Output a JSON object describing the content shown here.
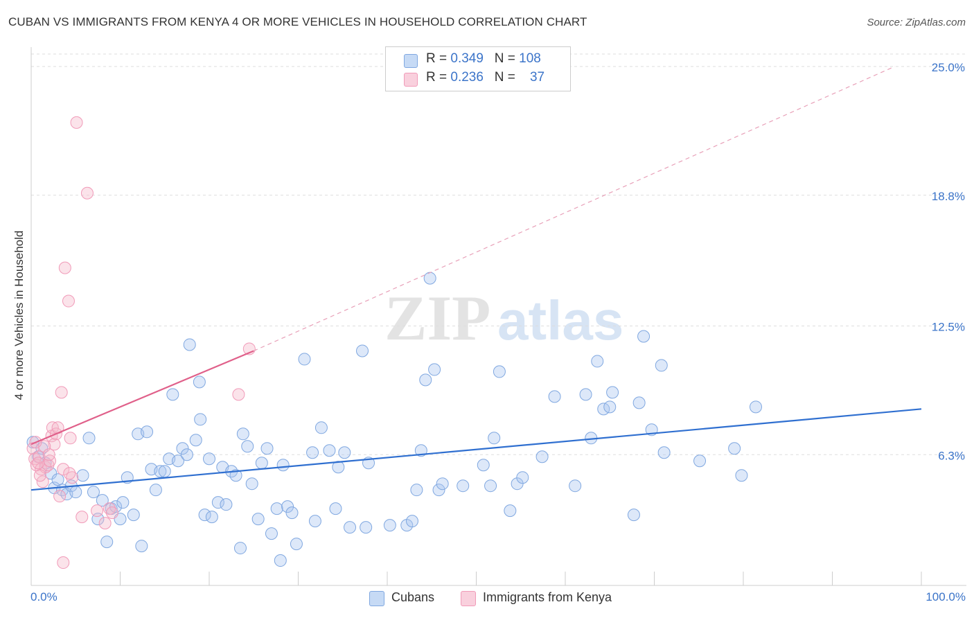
{
  "header": {
    "title": "CUBAN VS IMMIGRANTS FROM KENYA 4 OR MORE VEHICLES IN HOUSEHOLD CORRELATION CHART",
    "source": "Source: ZipAtlas.com"
  },
  "watermark": {
    "zip": "ZIP",
    "atlas": "atlas"
  },
  "legend": {
    "rows": [
      {
        "r_label": "R = ",
        "r_value": "0.349",
        "n_label": "N = ",
        "n_value": "108",
        "color": "#a9c6ef"
      },
      {
        "r_label": "R = ",
        "r_value": "0.236",
        "n_label": "N = ",
        "n_value": "37",
        "color": "#f5b8cb"
      }
    ]
  },
  "bottom_legend": [
    {
      "label": "Cubans",
      "color": "#a9c6ef"
    },
    {
      "label": "Immigrants from Kenya",
      "color": "#f5b8cb"
    }
  ],
  "chart_data": {
    "type": "scatter",
    "ylabel": "4 or more Vehicles in Household",
    "xlim": [
      0,
      100
    ],
    "ylim": [
      0,
      25
    ],
    "x_tick_labels": [
      "0.0%",
      "100.0%"
    ],
    "y_ticks": [
      6.3,
      12.5,
      18.8,
      25.0
    ],
    "y_tick_labels": [
      "6.3%",
      "12.5%",
      "18.8%",
      "25.0%"
    ],
    "grid": true,
    "legend_position": "top-center",
    "series": [
      {
        "name": "Cubans",
        "color": "#7fa7e0",
        "trend": {
          "x": [
            0,
            100
          ],
          "y": [
            4.6,
            8.5
          ],
          "color": "#2f6fd0",
          "style": "solid"
        },
        "points": [
          [
            0.2,
            6.9
          ],
          [
            0.8,
            6.2
          ],
          [
            1.2,
            6.6
          ],
          [
            1.6,
            5.9
          ],
          [
            2.2,
            5.4
          ],
          [
            2.6,
            4.7
          ],
          [
            3.0,
            5.1
          ],
          [
            3.5,
            4.6
          ],
          [
            4.0,
            4.4
          ],
          [
            4.5,
            4.8
          ],
          [
            5.0,
            4.5
          ],
          [
            5.8,
            5.3
          ],
          [
            6.5,
            7.1
          ],
          [
            7.0,
            4.5
          ],
          [
            7.5,
            3.2
          ],
          [
            8.0,
            4.1
          ],
          [
            8.5,
            2.1
          ],
          [
            9.0,
            3.7
          ],
          [
            9.5,
            3.8
          ],
          [
            10.0,
            3.2
          ],
          [
            10.3,
            4.0
          ],
          [
            10.8,
            5.2
          ],
          [
            11.5,
            3.4
          ],
          [
            12.0,
            7.3
          ],
          [
            12.4,
            1.9
          ],
          [
            13.0,
            7.4
          ],
          [
            13.5,
            5.6
          ],
          [
            14.0,
            4.6
          ],
          [
            14.5,
            5.5
          ],
          [
            15.0,
            5.5
          ],
          [
            15.5,
            6.1
          ],
          [
            15.9,
            9.2
          ],
          [
            16.5,
            6.0
          ],
          [
            17.0,
            6.6
          ],
          [
            17.5,
            6.3
          ],
          [
            17.8,
            11.6
          ],
          [
            18.5,
            7.0
          ],
          [
            19.0,
            8.0
          ],
          [
            19.5,
            3.4
          ],
          [
            20.0,
            6.1
          ],
          [
            20.3,
            3.3
          ],
          [
            21.0,
            4.0
          ],
          [
            21.5,
            5.7
          ],
          [
            21.9,
            3.9
          ],
          [
            22.5,
            5.5
          ],
          [
            23.0,
            5.3
          ],
          [
            23.5,
            1.8
          ],
          [
            23.8,
            7.3
          ],
          [
            24.3,
            6.7
          ],
          [
            24.8,
            4.9
          ],
          [
            25.5,
            3.2
          ],
          [
            25.9,
            5.9
          ],
          [
            26.5,
            6.6
          ],
          [
            27.0,
            2.5
          ],
          [
            27.6,
            3.7
          ],
          [
            28.0,
            1.2
          ],
          [
            28.3,
            5.8
          ],
          [
            28.8,
            3.8
          ],
          [
            29.3,
            3.5
          ],
          [
            29.8,
            2.0
          ],
          [
            30.7,
            10.9
          ],
          [
            31.6,
            6.4
          ],
          [
            31.9,
            3.1
          ],
          [
            32.6,
            7.6
          ],
          [
            33.5,
            6.5
          ],
          [
            34.2,
            3.7
          ],
          [
            34.5,
            5.7
          ],
          [
            35.2,
            6.4
          ],
          [
            35.8,
            2.8
          ],
          [
            37.2,
            11.3
          ],
          [
            37.6,
            2.8
          ],
          [
            37.9,
            5.9
          ],
          [
            40.3,
            2.9
          ],
          [
            42.2,
            2.9
          ],
          [
            42.8,
            3.1
          ],
          [
            43.3,
            4.6
          ],
          [
            43.8,
            6.5
          ],
          [
            44.3,
            9.9
          ],
          [
            44.8,
            14.8
          ],
          [
            45.3,
            10.4
          ],
          [
            45.8,
            4.6
          ],
          [
            46.2,
            4.9
          ],
          [
            48.5,
            4.8
          ],
          [
            50.8,
            5.8
          ],
          [
            51.6,
            4.8
          ],
          [
            52.0,
            7.1
          ],
          [
            52.6,
            10.3
          ],
          [
            53.8,
            3.6
          ],
          [
            54.6,
            4.9
          ],
          [
            55.2,
            5.2
          ],
          [
            57.4,
            6.2
          ],
          [
            58.8,
            9.1
          ],
          [
            61.1,
            4.8
          ],
          [
            62.3,
            9.2
          ],
          [
            62.9,
            7.1
          ],
          [
            63.6,
            10.8
          ],
          [
            64.3,
            8.5
          ],
          [
            65.0,
            8.6
          ],
          [
            65.3,
            9.3
          ],
          [
            67.7,
            3.4
          ],
          [
            68.3,
            8.8
          ],
          [
            68.8,
            12.0
          ],
          [
            69.7,
            7.5
          ],
          [
            70.8,
            10.6
          ],
          [
            71.1,
            6.4
          ],
          [
            75.1,
            6.0
          ],
          [
            79.0,
            6.6
          ],
          [
            79.8,
            5.3
          ],
          [
            81.4,
            8.6
          ],
          [
            18.9,
            9.8
          ]
        ]
      },
      {
        "name": "Immigrants from Kenya",
        "color": "#f19ab8",
        "trend": {
          "x": [
            0,
            25,
            97
          ],
          "y": [
            6.8,
            11.3,
            25.0
          ],
          "color": "#e0608a",
          "style": "solid-then-dashed"
        },
        "points": [
          [
            0.2,
            6.6
          ],
          [
            0.4,
            6.1
          ],
          [
            0.6,
            5.8
          ],
          [
            0.9,
            6.2
          ],
          [
            1.1,
            5.6
          ],
          [
            1.3,
            5.0
          ],
          [
            1.6,
            5.7
          ],
          [
            1.9,
            5.8
          ],
          [
            2.1,
            6.0
          ],
          [
            2.3,
            7.2
          ],
          [
            2.4,
            7.6
          ],
          [
            2.6,
            6.8
          ],
          [
            2.8,
            7.3
          ],
          [
            3.0,
            7.6
          ],
          [
            3.2,
            4.3
          ],
          [
            3.4,
            9.3
          ],
          [
            3.6,
            5.6
          ],
          [
            3.8,
            15.3
          ],
          [
            4.2,
            13.7
          ],
          [
            4.4,
            7.1
          ],
          [
            4.6,
            5.2
          ],
          [
            5.1,
            22.3
          ],
          [
            5.7,
            3.3
          ],
          [
            6.3,
            18.9
          ],
          [
            7.4,
            3.6
          ],
          [
            8.3,
            3.0
          ],
          [
            8.8,
            3.7
          ],
          [
            9.1,
            3.5
          ],
          [
            24.5,
            11.4
          ],
          [
            23.3,
            9.2
          ],
          [
            1.5,
            6.7
          ],
          [
            1.0,
            5.3
          ],
          [
            0.5,
            6.9
          ],
          [
            3.6,
            1.1
          ],
          [
            2.0,
            6.3
          ],
          [
            4.3,
            5.4
          ],
          [
            0.8,
            5.9
          ]
        ]
      }
    ]
  }
}
